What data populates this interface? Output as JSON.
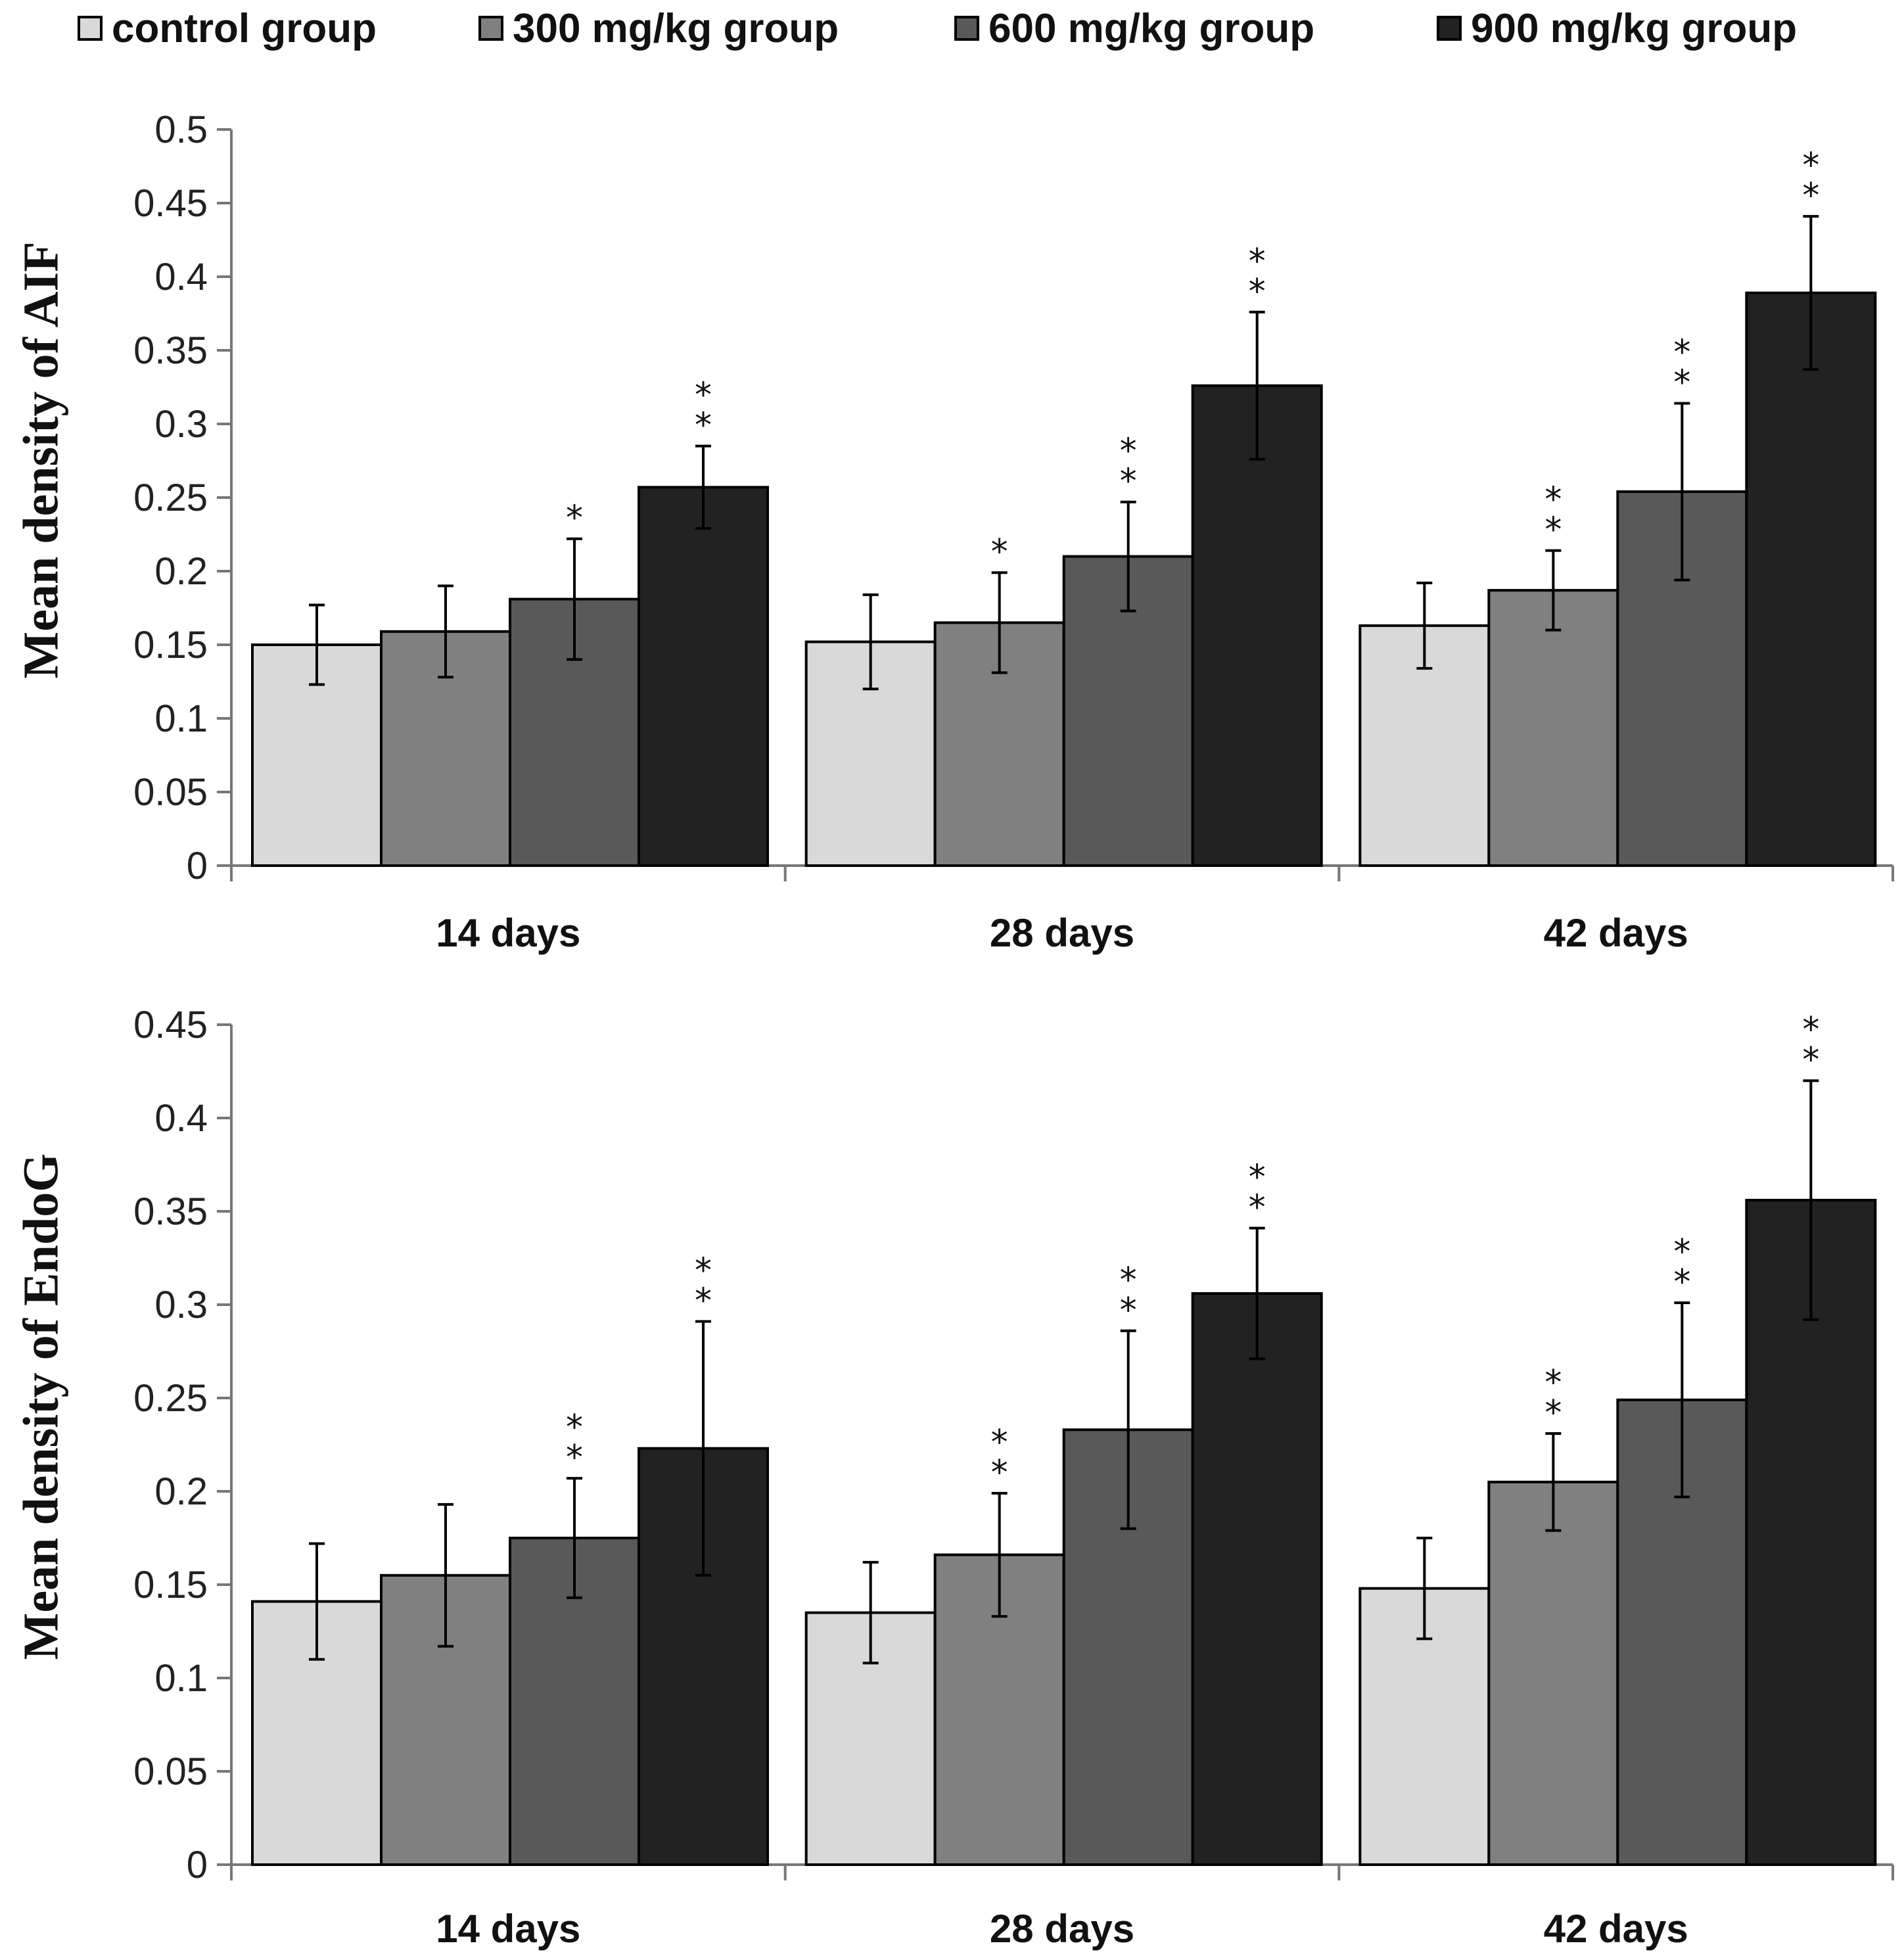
{
  "legend": {
    "items": [
      {
        "label": "control group",
        "color": "#d9d9d9"
      },
      {
        "label": "300 mg/kg group",
        "color": "#808080"
      },
      {
        "label": "600 mg/kg group",
        "color": "#595959"
      },
      {
        "label": "900 mg/kg group",
        "color": "#222222"
      }
    ]
  },
  "chart_data": [
    {
      "type": "bar",
      "title": "",
      "xlabel": "",
      "ylabel": "Mean density of AIF",
      "ylim": [
        0,
        0.5
      ],
      "yticks": [
        0,
        0.05,
        0.1,
        0.15,
        0.2,
        0.25,
        0.3,
        0.35,
        0.4,
        0.45,
        0.5
      ],
      "categories": [
        "14 days",
        "28 days",
        "42 days"
      ],
      "series": [
        {
          "name": "control group",
          "values": [
            0.15,
            0.152,
            0.163
          ],
          "errors": [
            0.027,
            0.032,
            0.029
          ],
          "significance": [
            "",
            "",
            ""
          ]
        },
        {
          "name": "300 mg/kg group",
          "values": [
            0.159,
            0.165,
            0.187
          ],
          "errors": [
            0.031,
            0.034,
            0.027
          ],
          "significance": [
            "",
            "*",
            "**"
          ]
        },
        {
          "name": "600 mg/kg group",
          "values": [
            0.181,
            0.21,
            0.254
          ],
          "errors": [
            0.041,
            0.037,
            0.06
          ],
          "significance": [
            "*",
            "**",
            "**"
          ]
        },
        {
          "name": "900 mg/kg group",
          "values": [
            0.257,
            0.326,
            0.389
          ],
          "errors": [
            0.028,
            0.05,
            0.052
          ],
          "significance": [
            "**",
            "**",
            "**"
          ]
        }
      ]
    },
    {
      "type": "bar",
      "title": "",
      "xlabel": "",
      "ylabel": "Mean density of EndoG",
      "ylim": [
        0,
        0.45
      ],
      "yticks": [
        0,
        0.05,
        0.1,
        0.15,
        0.2,
        0.25,
        0.3,
        0.35,
        0.4,
        0.45
      ],
      "categories": [
        "14 days",
        "28 days",
        "42 days"
      ],
      "series": [
        {
          "name": "control group",
          "values": [
            0.141,
            0.135,
            0.148
          ],
          "errors": [
            0.031,
            0.027,
            0.027
          ],
          "significance": [
            "",
            "",
            ""
          ]
        },
        {
          "name": "300 mg/kg group",
          "values": [
            0.155,
            0.166,
            0.205
          ],
          "errors": [
            0.038,
            0.033,
            0.026
          ],
          "significance": [
            "",
            "**",
            "**"
          ]
        },
        {
          "name": "600 mg/kg group",
          "values": [
            0.175,
            0.233,
            0.249
          ],
          "errors": [
            0.032,
            0.053,
            0.052
          ],
          "significance": [
            "**",
            "**",
            "**"
          ]
        },
        {
          "name": "900 mg/kg group",
          "values": [
            0.223,
            0.306,
            0.356
          ],
          "errors": [
            0.068,
            0.035,
            0.064
          ],
          "significance": [
            "**",
            "**",
            "**"
          ]
        }
      ]
    }
  ]
}
